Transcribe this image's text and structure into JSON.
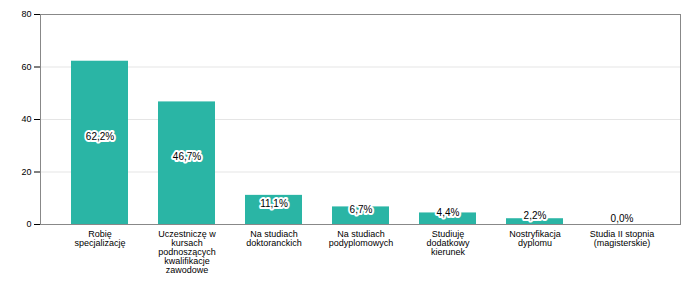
{
  "chart_data": {
    "type": "bar",
    "categories": [
      "Robię\nspecjalizację",
      "Uczestniczę w\nkursach\npodnoszących\nkwalifikacje\nzawodowe",
      "Na studiach\ndoktoranckich",
      "Na studiach\npodyplomowych",
      "Studiuję\ndodatkowy\nkierunek",
      "Nostryfikacja\ndyplomu",
      "Studia II stopnia\n(magisterskie)"
    ],
    "values": [
      62.2,
      46.7,
      11.1,
      6.7,
      4.4,
      2.2,
      0.0
    ],
    "value_labels": [
      "62,2%",
      "46,7%",
      "11,1%",
      "6,7%",
      "4,4%",
      "2,2%",
      "0,0%"
    ],
    "data_labels": true,
    "color": "#2ab5a5",
    "ylim": [
      0,
      80
    ],
    "yticks": [
      0,
      20,
      40,
      60,
      80
    ],
    "grid": true
  }
}
